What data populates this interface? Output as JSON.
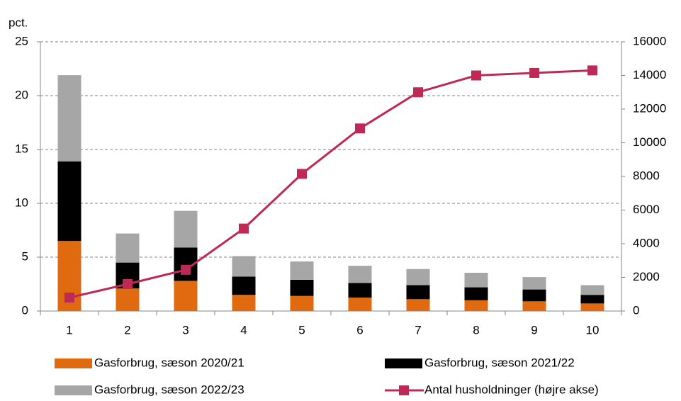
{
  "chart_data": {
    "type": "bar",
    "y_label": "pct.",
    "categories": [
      "1",
      "2",
      "3",
      "4",
      "5",
      "6",
      "7",
      "8",
      "9",
      "10"
    ],
    "series": [
      {
        "name": "Gasforbrug, sæson 2020/21",
        "color": "#e06a10",
        "values": [
          6.5,
          2.1,
          2.8,
          1.5,
          1.4,
          1.25,
          1.1,
          1.0,
          0.9,
          0.7
        ]
      },
      {
        "name": "Gasforbrug, sæson 2021/22",
        "color": "#000000",
        "values": [
          7.4,
          2.4,
          3.1,
          1.7,
          1.5,
          1.35,
          1.3,
          1.2,
          1.1,
          0.8
        ]
      },
      {
        "name": "Gasforbrug, sæson 2022/23",
        "color": "#a6a6a6",
        "values": [
          8.0,
          2.7,
          3.4,
          1.9,
          1.7,
          1.6,
          1.5,
          1.35,
          1.15,
          0.9
        ]
      },
      {
        "name": "Antal husholdninger (højre akse)",
        "color": "#be2a55",
        "type": "line",
        "axis": "y2",
        "values": [
          800,
          1600,
          2450,
          4900,
          8150,
          10850,
          13000,
          14000,
          14150,
          14300
        ]
      }
    ],
    "ylim": [
      0,
      25
    ],
    "yticks": [
      0,
      5,
      10,
      15,
      20,
      25
    ],
    "y2lim": [
      0,
      16000
    ],
    "y2ticks": [
      0,
      2000,
      4000,
      6000,
      8000,
      10000,
      12000,
      14000,
      16000
    ],
    "grid": true
  }
}
